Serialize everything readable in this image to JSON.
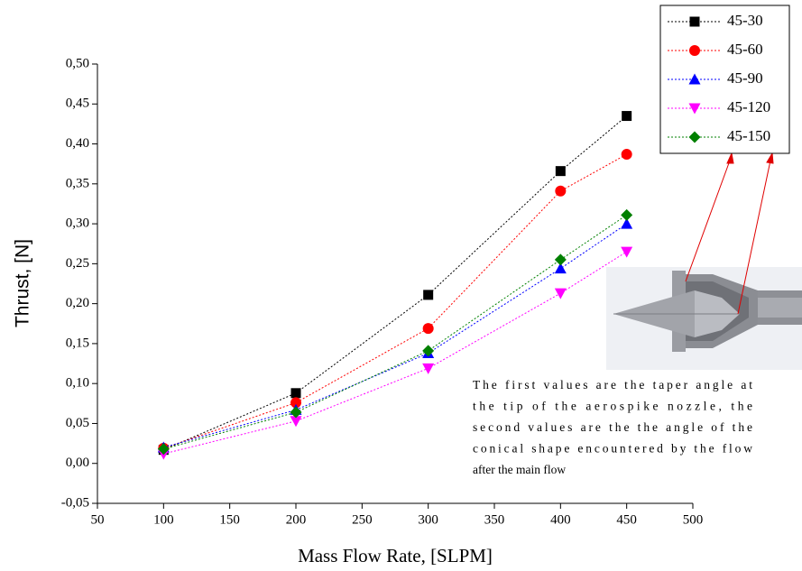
{
  "chart_data": {
    "type": "line",
    "xlabel": "Mass Flow Rate, [SLPM]",
    "ylabel": "Thrust, [N]",
    "x": [
      100,
      200,
      300,
      400,
      450
    ],
    "series": [
      {
        "name": "45-30",
        "color": "#000000",
        "marker": "square",
        "values": [
          0.017,
          0.088,
          0.211,
          0.366,
          0.435
        ]
      },
      {
        "name": "45-60",
        "color": "#ff0000",
        "marker": "circle",
        "values": [
          0.019,
          0.076,
          0.169,
          0.341,
          0.387
        ]
      },
      {
        "name": "45-90",
        "color": "#0000ff",
        "marker": "triangle-up",
        "values": [
          0.02,
          0.067,
          0.138,
          0.244,
          0.3
        ]
      },
      {
        "name": "45-120",
        "color": "#ff00ff",
        "marker": "triangle-down",
        "values": [
          0.012,
          0.053,
          0.119,
          0.213,
          0.265
        ]
      },
      {
        "name": "45-150",
        "color": "#008000",
        "marker": "diamond",
        "values": [
          0.018,
          0.064,
          0.141,
          0.255,
          0.311
        ]
      }
    ],
    "xlim": [
      50,
      500
    ],
    "xticks": [
      50,
      100,
      150,
      200,
      250,
      300,
      350,
      400,
      450,
      500
    ],
    "ylim": [
      -0.05,
      0.5
    ],
    "yticks": [
      {
        "value": -0.05,
        "label": "-0,05"
      },
      {
        "value": 0,
        "label": "0,00"
      },
      {
        "value": 0.05,
        "label": "0,05"
      },
      {
        "value": 0.1,
        "label": "0,10"
      },
      {
        "value": 0.15,
        "label": "0,15"
      },
      {
        "value": 0.2,
        "label": "0,20"
      },
      {
        "value": 0.25,
        "label": "0,25"
      },
      {
        "value": 0.3,
        "label": "0,30"
      },
      {
        "value": 0.35,
        "label": "0,35"
      },
      {
        "value": 0.4,
        "label": "0,40"
      },
      {
        "value": 0.45,
        "label": "0,45"
      },
      {
        "value": 0.5,
        "label": "0,50"
      }
    ],
    "annotation_lines": [
      "The first values are  the taper angle at",
      "the tip of the aerospike nozzle, the",
      "second values are the  the angle of the",
      "conical shape encountered  by the flow",
      "after the main flow"
    ]
  }
}
